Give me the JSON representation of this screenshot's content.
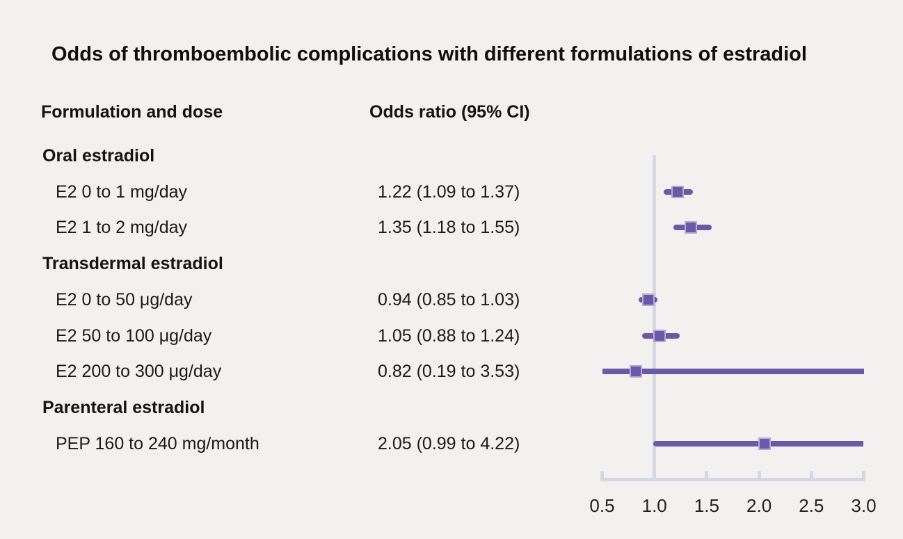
{
  "title": "Odds of thromboembolic complications with different formulations of estradiol",
  "columns": {
    "formulation": "Formulation and dose",
    "odds_ratio": "Odds ratio (95% CI)"
  },
  "colors": {
    "background": "#f2f1f0",
    "marker_purple": "#6a59a6",
    "marker_edge": "#b6aad6",
    "axis_gray": "#d3d8e2",
    "text": "#1a1a1a"
  },
  "chart_data": {
    "type": "forest",
    "title": "Odds of thromboembolic complications with different formulations of estradiol",
    "xlim": [
      0.5,
      3.0
    ],
    "reference_line": 1.0,
    "axis_ticks": [
      0.5,
      1.0,
      1.5,
      2.0,
      2.5,
      3.0
    ],
    "tick_labels": [
      "0.5",
      "1.0",
      "1.5",
      "2.0",
      "2.5",
      "3.0"
    ],
    "grid": false,
    "legend": false,
    "groups": [
      {
        "label": "Oral estradiol",
        "rows": [
          {
            "label": "E2 0 to 1 mg/day",
            "display": "1.22 (1.09 to 1.37)",
            "estimate": 1.22,
            "ci_low": 1.09,
            "ci_high": 1.37
          },
          {
            "label": "E2 1 to 2 mg/day",
            "display": "1.35 (1.18 to 1.55)",
            "estimate": 1.35,
            "ci_low": 1.18,
            "ci_high": 1.55
          }
        ]
      },
      {
        "label": "Transdermal estradiol",
        "rows": [
          {
            "label": "E2 0 to 50 μg/day",
            "display": "0.94 (0.85 to 1.03)",
            "estimate": 0.94,
            "ci_low": 0.85,
            "ci_high": 1.03
          },
          {
            "label": "E2 50 to 100 μg/day",
            "display": "1.05 (0.88 to 1.24)",
            "estimate": 1.05,
            "ci_low": 0.88,
            "ci_high": 1.24
          },
          {
            "label": "E2 200 to 300 μg/day",
            "display": "0.82 (0.19 to 3.53)",
            "estimate": 0.82,
            "ci_low": 0.19,
            "ci_high": 3.53
          }
        ]
      },
      {
        "label": "Parenteral estradiol",
        "rows": [
          {
            "label": "PEP 160 to 240 mg/month",
            "display": "2.05 (0.99 to 4.22)",
            "estimate": 2.05,
            "ci_low": 0.99,
            "ci_high": 4.22
          }
        ]
      }
    ]
  }
}
